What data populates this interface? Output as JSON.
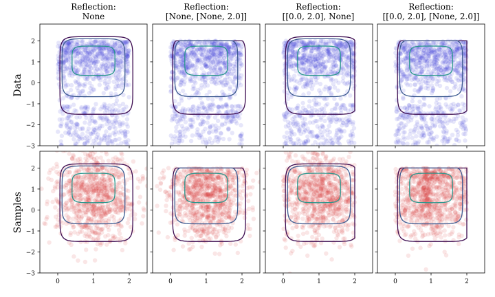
{
  "figure": {
    "column_titles": [
      [
        "Reflection:",
        "None"
      ],
      [
        "Reflection:",
        "[None, [None, 2.0]]"
      ],
      [
        "Reflection:",
        "[[0.0, 2.0], None]"
      ],
      [
        "Reflection:",
        "[[0.0, 2.0], [None, 2.0]]"
      ]
    ],
    "row_labels": [
      "Data",
      "Samples"
    ],
    "colors": {
      "data_points": "#3a3ad8",
      "sample_points": "#d83a3a",
      "contour_outer": "#3b0a4f",
      "contour_mid": "#3c5a90",
      "contour_inner": "#27968c"
    }
  },
  "chart_data": {
    "type": "scatter",
    "grid": false,
    "shared_axes": true,
    "xlim": [
      -0.5,
      2.5
    ],
    "ylim": [
      -3,
      2.8
    ],
    "xticks": [
      0,
      1,
      2
    ],
    "yticks": [
      -3,
      -2,
      -1,
      0,
      1,
      2
    ],
    "density_contours": [
      "outer",
      "mid",
      "inner"
    ],
    "panels": [
      {
        "row": "Data",
        "column": 0,
        "reflection": "None",
        "series": "data",
        "x_range": [
          0,
          2
        ],
        "y_range": [
          -3,
          2
        ],
        "x_clip": null,
        "y_clip": null
      },
      {
        "row": "Data",
        "column": 1,
        "reflection": "[None, [None, 2.0]]",
        "series": "data",
        "x_range": [
          0,
          2
        ],
        "y_range": [
          -3,
          2
        ],
        "x_clip": null,
        "y_clip": 2.0
      },
      {
        "row": "Data",
        "column": 2,
        "reflection": "[[0.0, 2.0], None]",
        "series": "data",
        "x_range": [
          0,
          2
        ],
        "y_range": [
          -3,
          2
        ],
        "x_clip": [
          0.0,
          2.0
        ],
        "y_clip": null
      },
      {
        "row": "Data",
        "column": 3,
        "reflection": "[[0.0, 2.0], [None, 2.0]]",
        "series": "data",
        "x_range": [
          0,
          2
        ],
        "y_range": [
          -3,
          2
        ],
        "x_clip": [
          0.0,
          2.0
        ],
        "y_clip": 2.0
      },
      {
        "row": "Samples",
        "column": 0,
        "reflection": "None",
        "series": "samples",
        "x_range": [
          -0.3,
          2.3
        ],
        "y_range": [
          -3,
          2.5
        ],
        "x_clip": null,
        "y_clip": null
      },
      {
        "row": "Samples",
        "column": 1,
        "reflection": "[None, [None, 2.0]]",
        "series": "samples",
        "x_range": [
          -0.3,
          2.3
        ],
        "y_range": [
          -3,
          2.0
        ],
        "x_clip": null,
        "y_clip": 2.0
      },
      {
        "row": "Samples",
        "column": 2,
        "reflection": "[[0.0, 2.0], None]",
        "series": "samples",
        "x_range": [
          0,
          2
        ],
        "y_range": [
          -3,
          2.5
        ],
        "x_clip": [
          0.0,
          2.0
        ],
        "y_clip": null
      },
      {
        "row": "Samples",
        "column": 3,
        "reflection": "[[0.0, 2.0], [None, 2.0]]",
        "series": "samples",
        "x_range": [
          0,
          2
        ],
        "y_range": [
          -3,
          2.0
        ],
        "x_clip": [
          0.0,
          2.0
        ],
        "y_clip": 2.0
      }
    ]
  }
}
